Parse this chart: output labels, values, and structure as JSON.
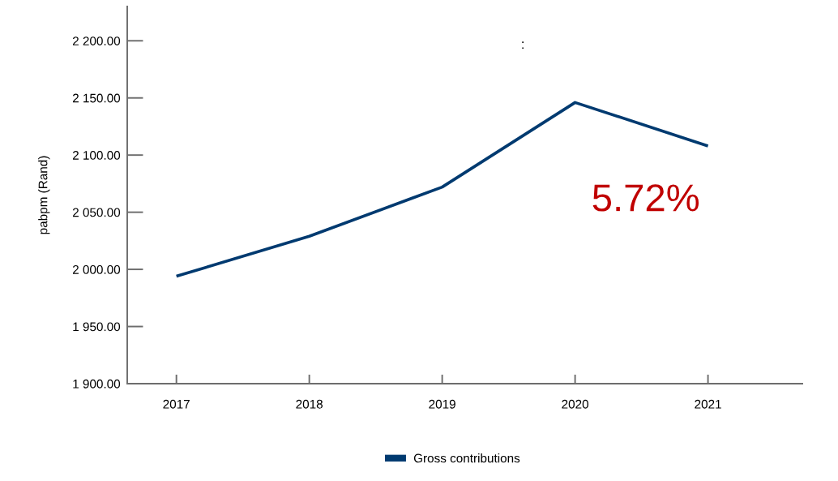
{
  "chart_data": {
    "type": "line",
    "title": ":",
    "ylabel": "pabpm (Rand)",
    "categories": [
      "2017",
      "2018",
      "2019",
      "2020",
      "2021"
    ],
    "series": [
      {
        "name": "Gross contributions",
        "color": "#003a70",
        "values": [
          1994,
          2029,
          2072,
          2146,
          2108
        ]
      }
    ],
    "ylim": [
      1900,
      2230
    ],
    "yticks": [
      {
        "value": 1900,
        "label": "1 900.00"
      },
      {
        "value": 1950,
        "label": "1 950.00"
      },
      {
        "value": 2000,
        "label": "2 000.00"
      },
      {
        "value": 2050,
        "label": "2 050.00"
      },
      {
        "value": 2100,
        "label": "2 100.00"
      },
      {
        "value": 2150,
        "label": "2 150.00"
      },
      {
        "value": 2200,
        "label": "2 200.00"
      }
    ],
    "annotations": [
      "5.72%"
    ],
    "legend": "bottom",
    "grid": false,
    "marker": "none",
    "line_style": "solid"
  }
}
